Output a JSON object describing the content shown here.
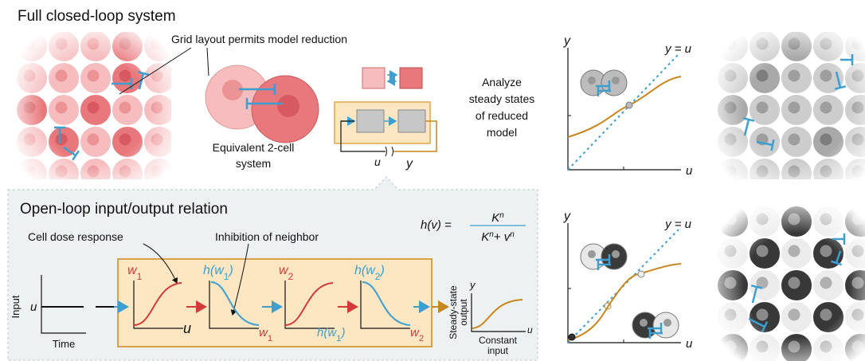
{
  "top": {
    "title": "Full closed-loop system",
    "grid_note": "Grid layout permits model reduction",
    "two_cell": [
      "Equivalent 2-cell",
      "system"
    ],
    "analyze": [
      "Analyze",
      "steady states",
      "of reduced",
      "model"
    ],
    "loop_u": "u",
    "loop_y": "y"
  },
  "open_loop": {
    "title": "Open-loop input/output relation",
    "formula": {
      "lhs": "h(v) =",
      "num_base": "K",
      "num_exp": "n",
      "den_base": "K",
      "den_exp": "n",
      "den_plus": "+ v",
      "den_exp2": "n"
    },
    "dose_note": "Cell dose response",
    "inhib_note": "Inhibition of neighbor",
    "input_axis": {
      "y_label": "Input",
      "u": "u",
      "x_label": "Time"
    },
    "panels": [
      {
        "top": [
          "w",
          "1"
        ],
        "bottom": [
          "u"
        ]
      },
      {
        "top": [
          "h(w",
          "1",
          ")"
        ],
        "bottom": [
          "w",
          "1"
        ]
      },
      {
        "top": [
          "w",
          "2"
        ],
        "bottom": [
          "h(w",
          "1",
          ")"
        ]
      },
      {
        "top": [
          "h(w",
          "2",
          ")"
        ],
        "bottom": [
          "w",
          "2"
        ]
      }
    ],
    "output": {
      "y_label": [
        "Steady-state",
        "output"
      ],
      "y": "y",
      "u": "u",
      "x_label": [
        "Constant",
        "input"
      ]
    }
  },
  "steady_plots": [
    {
      "y": "y",
      "diag": "y = u",
      "x": "u"
    },
    {
      "y": "y",
      "diag": "y = u",
      "x": "u"
    }
  ]
}
